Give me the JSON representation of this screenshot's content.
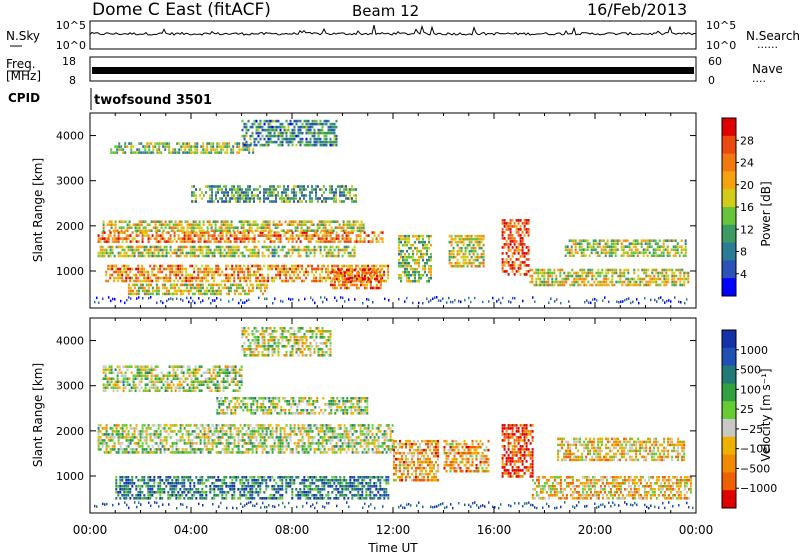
{
  "header": {
    "title": "Dome C East (fitACF)",
    "beam": "Beam 12",
    "date": "16/Feb/2013"
  },
  "labels": {
    "nsky": "N.Sky",
    "nsearch": "N.Search",
    "freq_line1": "Freq.",
    "freq_line2": "[MHz]",
    "nave": "Nave",
    "cpid": "CPID",
    "cpid_value": "twofsound 3501",
    "nsky_ticks": [
      "10^5",
      "10^0"
    ],
    "nsearch_ticks": [
      "10^5",
      "10^0"
    ],
    "freq_ticks": [
      "18",
      "8"
    ],
    "nave_ticks": [
      "60",
      "0"
    ],
    "dots": "......",
    "dots2": "...."
  },
  "colors": {
    "power": [
      "#0000ff",
      "#2a52b8",
      "#2d7a96",
      "#3d9a60",
      "#68c33a",
      "#d2cc18",
      "#f4a20e",
      "#f07a10",
      "#ea4a10",
      "#e00000"
    ],
    "velocity": [
      "#1432a8",
      "#2050b4",
      "#1f7a78",
      "#30a040",
      "#66cc33",
      "#c8c8c4",
      "#f0b000",
      "#f08a00",
      "#f06000",
      "#e00000"
    ]
  },
  "chart_data": [
    {
      "type": "heatmap",
      "name": "power",
      "xlabel": "",
      "ylabel": "Slant Range [km]",
      "x_ticks": [
        "00:00",
        "04:00",
        "08:00",
        "12:00",
        "16:00",
        "20:00",
        "00:00"
      ],
      "y_ticks": [
        1000,
        2000,
        3000,
        4000
      ],
      "ylim": [
        180,
        4500
      ],
      "colorbar": {
        "label": "Power [dB]",
        "ticks": [
          4,
          8,
          12,
          16,
          20,
          24,
          28
        ],
        "range": [
          0,
          30
        ]
      },
      "bands": [
        {
          "t0": 0.3,
          "t1": 11.6,
          "r0": 1640,
          "r1": 1880,
          "level": 0.75
        },
        {
          "t0": 0.5,
          "t1": 10.8,
          "r0": 1920,
          "r1": 2120,
          "level": 0.55
        },
        {
          "t0": 0.3,
          "t1": 10.5,
          "r0": 1320,
          "r1": 1560,
          "level": 0.5
        },
        {
          "t0": 0.6,
          "t1": 11.8,
          "r0": 780,
          "r1": 1140,
          "level": 0.72
        },
        {
          "t0": 1.5,
          "t1": 7.0,
          "r0": 500,
          "r1": 720,
          "level": 0.55
        },
        {
          "t0": 9.5,
          "t1": 11.5,
          "r0": 650,
          "r1": 1050,
          "level": 0.8
        },
        {
          "t0": 0.8,
          "t1": 6.5,
          "r0": 3600,
          "r1": 3850,
          "level": 0.45
        },
        {
          "t0": 4.0,
          "t1": 10.5,
          "r0": 2550,
          "r1": 2900,
          "level": 0.35
        },
        {
          "t0": 6.0,
          "t1": 9.8,
          "r0": 3800,
          "r1": 4350,
          "level": 0.3
        },
        {
          "t0": 12.2,
          "t1": 13.5,
          "r0": 800,
          "r1": 1800,
          "level": 0.45
        },
        {
          "t0": 14.2,
          "t1": 15.6,
          "r0": 1100,
          "r1": 1800,
          "level": 0.55
        },
        {
          "t0": 16.3,
          "t1": 17.4,
          "r0": 900,
          "r1": 2150,
          "level": 0.85
        },
        {
          "t0": 17.4,
          "t1": 23.7,
          "r0": 700,
          "r1": 1050,
          "level": 0.55
        },
        {
          "t0": 18.8,
          "t1": 23.6,
          "r0": 1350,
          "r1": 1700,
          "level": 0.5
        }
      ]
    },
    {
      "type": "heatmap",
      "name": "velocity",
      "xlabel": "Time UT",
      "ylabel": "Slant Range [km]",
      "x_ticks": [
        "00:00",
        "04:00",
        "08:00",
        "12:00",
        "16:00",
        "20:00",
        "00:00"
      ],
      "y_ticks": [
        1000,
        2000,
        3000,
        4000
      ],
      "ylim": [
        180,
        4500
      ],
      "colorbar": {
        "label": "Velocity [m s⁻¹]",
        "ticks": [
          "1000",
          "500",
          "100",
          "25",
          "−25",
          "−100",
          "−500",
          "−1000"
        ],
        "range": [
          -1000,
          1000
        ]
      },
      "bands": [
        {
          "t0": 0.3,
          "t1": 12.0,
          "r0": 1500,
          "r1": 2150,
          "level": 0.5
        },
        {
          "t0": 1.0,
          "t1": 11.8,
          "r0": 500,
          "r1": 1000,
          "level": 0.25
        },
        {
          "t0": 0.5,
          "t1": 6.0,
          "r0": 2900,
          "r1": 3450,
          "level": 0.5
        },
        {
          "t0": 5.0,
          "t1": 11.0,
          "r0": 2400,
          "r1": 2750,
          "level": 0.5
        },
        {
          "t0": 6.0,
          "t1": 9.5,
          "r0": 3700,
          "r1": 4300,
          "level": 0.55
        },
        {
          "t0": 12.0,
          "t1": 13.8,
          "r0": 900,
          "r1": 1800,
          "level": 0.7
        },
        {
          "t0": 14.0,
          "t1": 15.8,
          "r0": 1100,
          "r1": 1800,
          "level": 0.7
        },
        {
          "t0": 16.3,
          "t1": 17.5,
          "r0": 1000,
          "r1": 2150,
          "level": 0.9
        },
        {
          "t0": 17.5,
          "t1": 23.8,
          "r0": 500,
          "r1": 1000,
          "level": 0.65
        },
        {
          "t0": 18.5,
          "t1": 23.5,
          "r0": 1350,
          "r1": 1850,
          "level": 0.65
        }
      ]
    }
  ]
}
